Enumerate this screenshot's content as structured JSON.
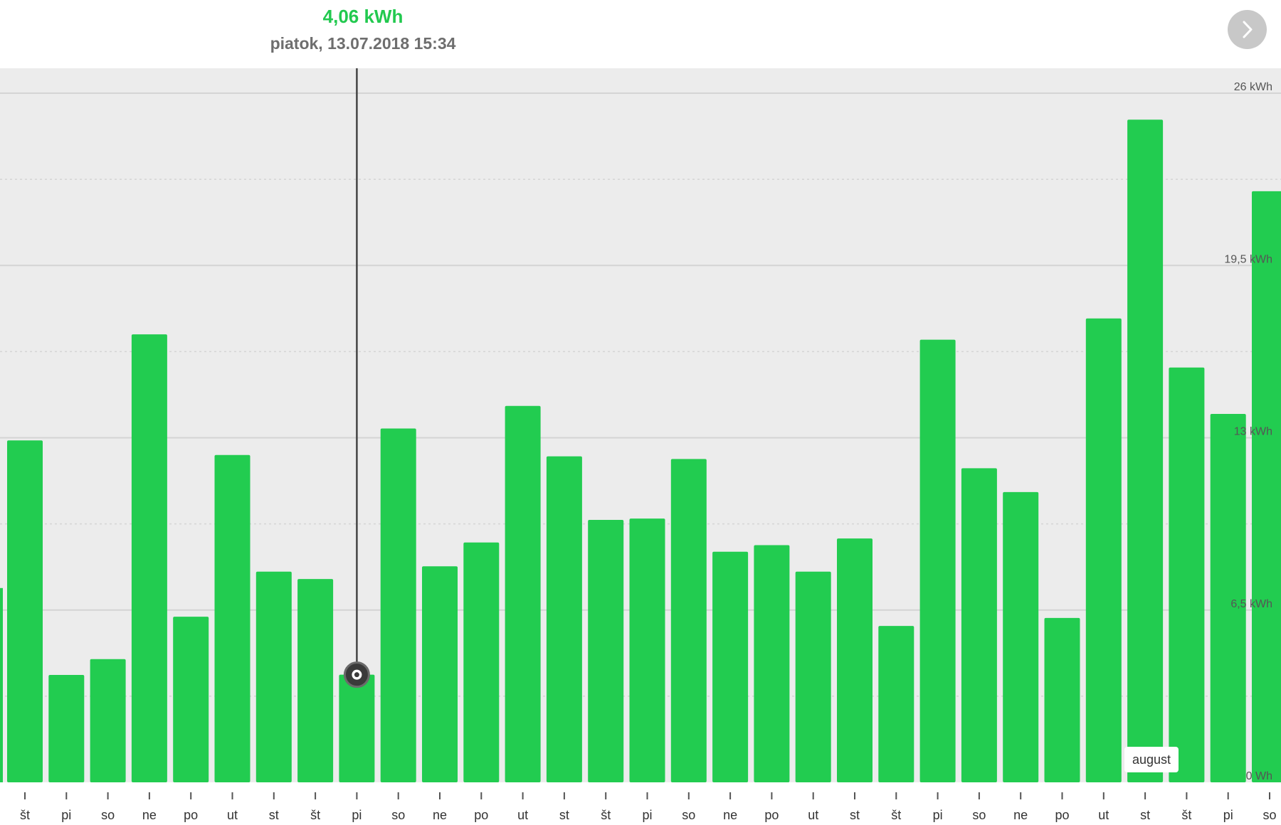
{
  "header": {
    "value": "4,06 kWh",
    "timestamp": "piatok, 13.07.2018 15:34",
    "next_icon": "chevron-right-icon"
  },
  "colors": {
    "bar": "#22cc50",
    "plot_bg": "#ececec",
    "grid": "#d4d4d4",
    "cursor": "#444444"
  },
  "month_label": "august",
  "chart_data": {
    "type": "bar",
    "unit": "kWh",
    "ylim": [
      0,
      26
    ],
    "y_ticks": [
      {
        "value": 0,
        "label": "0  Wh"
      },
      {
        "value": 6.5,
        "label": "6,5  kWh"
      },
      {
        "value": 13,
        "label": "13  kWh"
      },
      {
        "value": 19.5,
        "label": "19,5  kWh"
      },
      {
        "value": 26,
        "label": "26  kWh"
      }
    ],
    "grid": true,
    "categories": [
      "št",
      "pi",
      "so",
      "ne",
      "po",
      "ut",
      "st",
      "št",
      "pi",
      "so",
      "ne",
      "po",
      "ut",
      "st",
      "št",
      "pi",
      "so",
      "ne",
      "po",
      "ut",
      "st",
      "št",
      "pi",
      "so",
      "ne",
      "po",
      "ut",
      "st",
      "št",
      "pi",
      "so"
    ],
    "values": [
      12.9,
      4.05,
      4.65,
      16.9,
      6.25,
      12.35,
      7.95,
      7.67,
      4.06,
      13.35,
      8.15,
      9.05,
      14.2,
      12.3,
      9.9,
      9.95,
      12.2,
      8.7,
      8.95,
      7.95,
      9.2,
      5.9,
      16.7,
      11.85,
      10.95,
      6.2,
      17.5,
      25.0,
      15.65,
      13.9,
      22.3
    ],
    "partial_left_value": 7.33,
    "selected_index": 8
  }
}
